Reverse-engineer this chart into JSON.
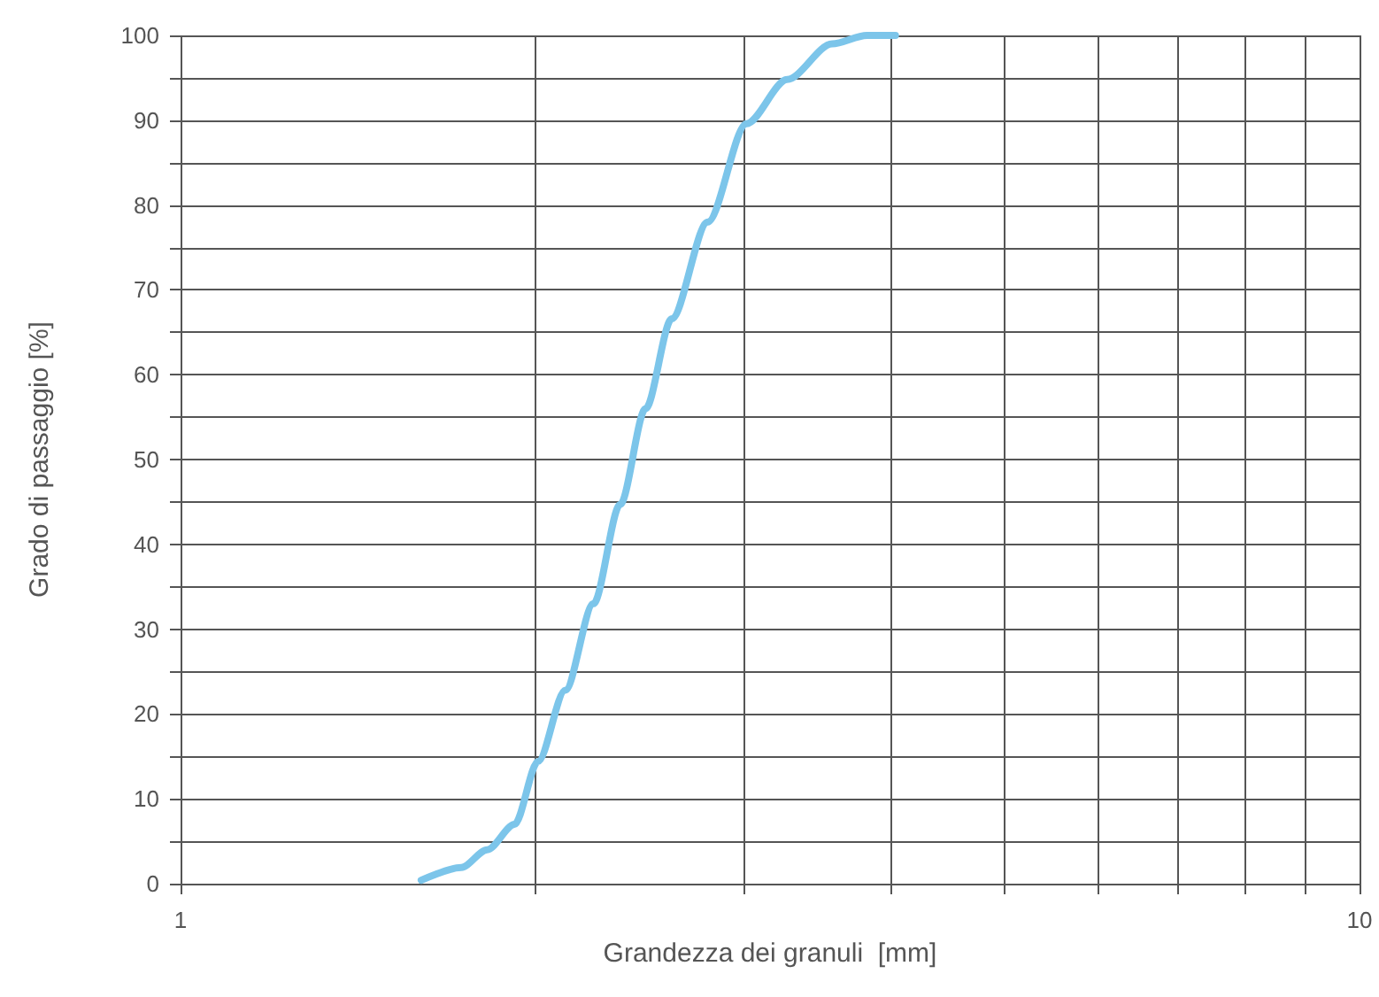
{
  "chart_data": {
    "type": "line",
    "xlabel": "Grandezza dei granuli  [mm]",
    "ylabel": "Grado di passaggio [%]",
    "log": "x",
    "grid": true,
    "marker": "none",
    "line_style": "solid",
    "xlim": [
      1,
      10
    ],
    "xticks": [
      1,
      {
        "value": 2,
        "label": null
      },
      {
        "value": 3,
        "label": null
      },
      {
        "value": 4,
        "label": null
      },
      {
        "value": 5,
        "label": null
      },
      {
        "value": 6,
        "label": null
      },
      {
        "value": 7,
        "label": null
      },
      {
        "value": 8,
        "label": null
      },
      {
        "value": 9,
        "label": null
      },
      10
    ],
    "ylim": [
      0,
      100
    ],
    "yticks": [
      0,
      {
        "value": 5,
        "label": null
      },
      10,
      {
        "value": 15,
        "label": null
      },
      20,
      {
        "value": 25,
        "label": null
      },
      30,
      {
        "value": 35,
        "label": null
      },
      40,
      {
        "value": 45,
        "label": null
      },
      50,
      {
        "value": 55,
        "label": null
      },
      60,
      {
        "value": 65,
        "label": null
      },
      70,
      {
        "value": 75,
        "label": null
      },
      80,
      {
        "value": 85,
        "label": null
      },
      90,
      {
        "value": 95,
        "label": null
      },
      100
    ],
    "series": [
      {
        "color": "#7cc5ea",
        "x": [
          1.6,
          1.73,
          1.82,
          1.92,
          2.01,
          2.12,
          2.24,
          2.36,
          2.48,
          2.61,
          2.8,
          3.02,
          3.27,
          3.57,
          3.82,
          4.04
        ],
        "values": [
          0.4,
          1.9,
          4,
          7,
          14.4,
          22.8,
          33,
          44.7,
          56,
          66.6,
          78,
          89.6,
          94.8,
          99,
          100,
          100
        ]
      }
    ]
  }
}
